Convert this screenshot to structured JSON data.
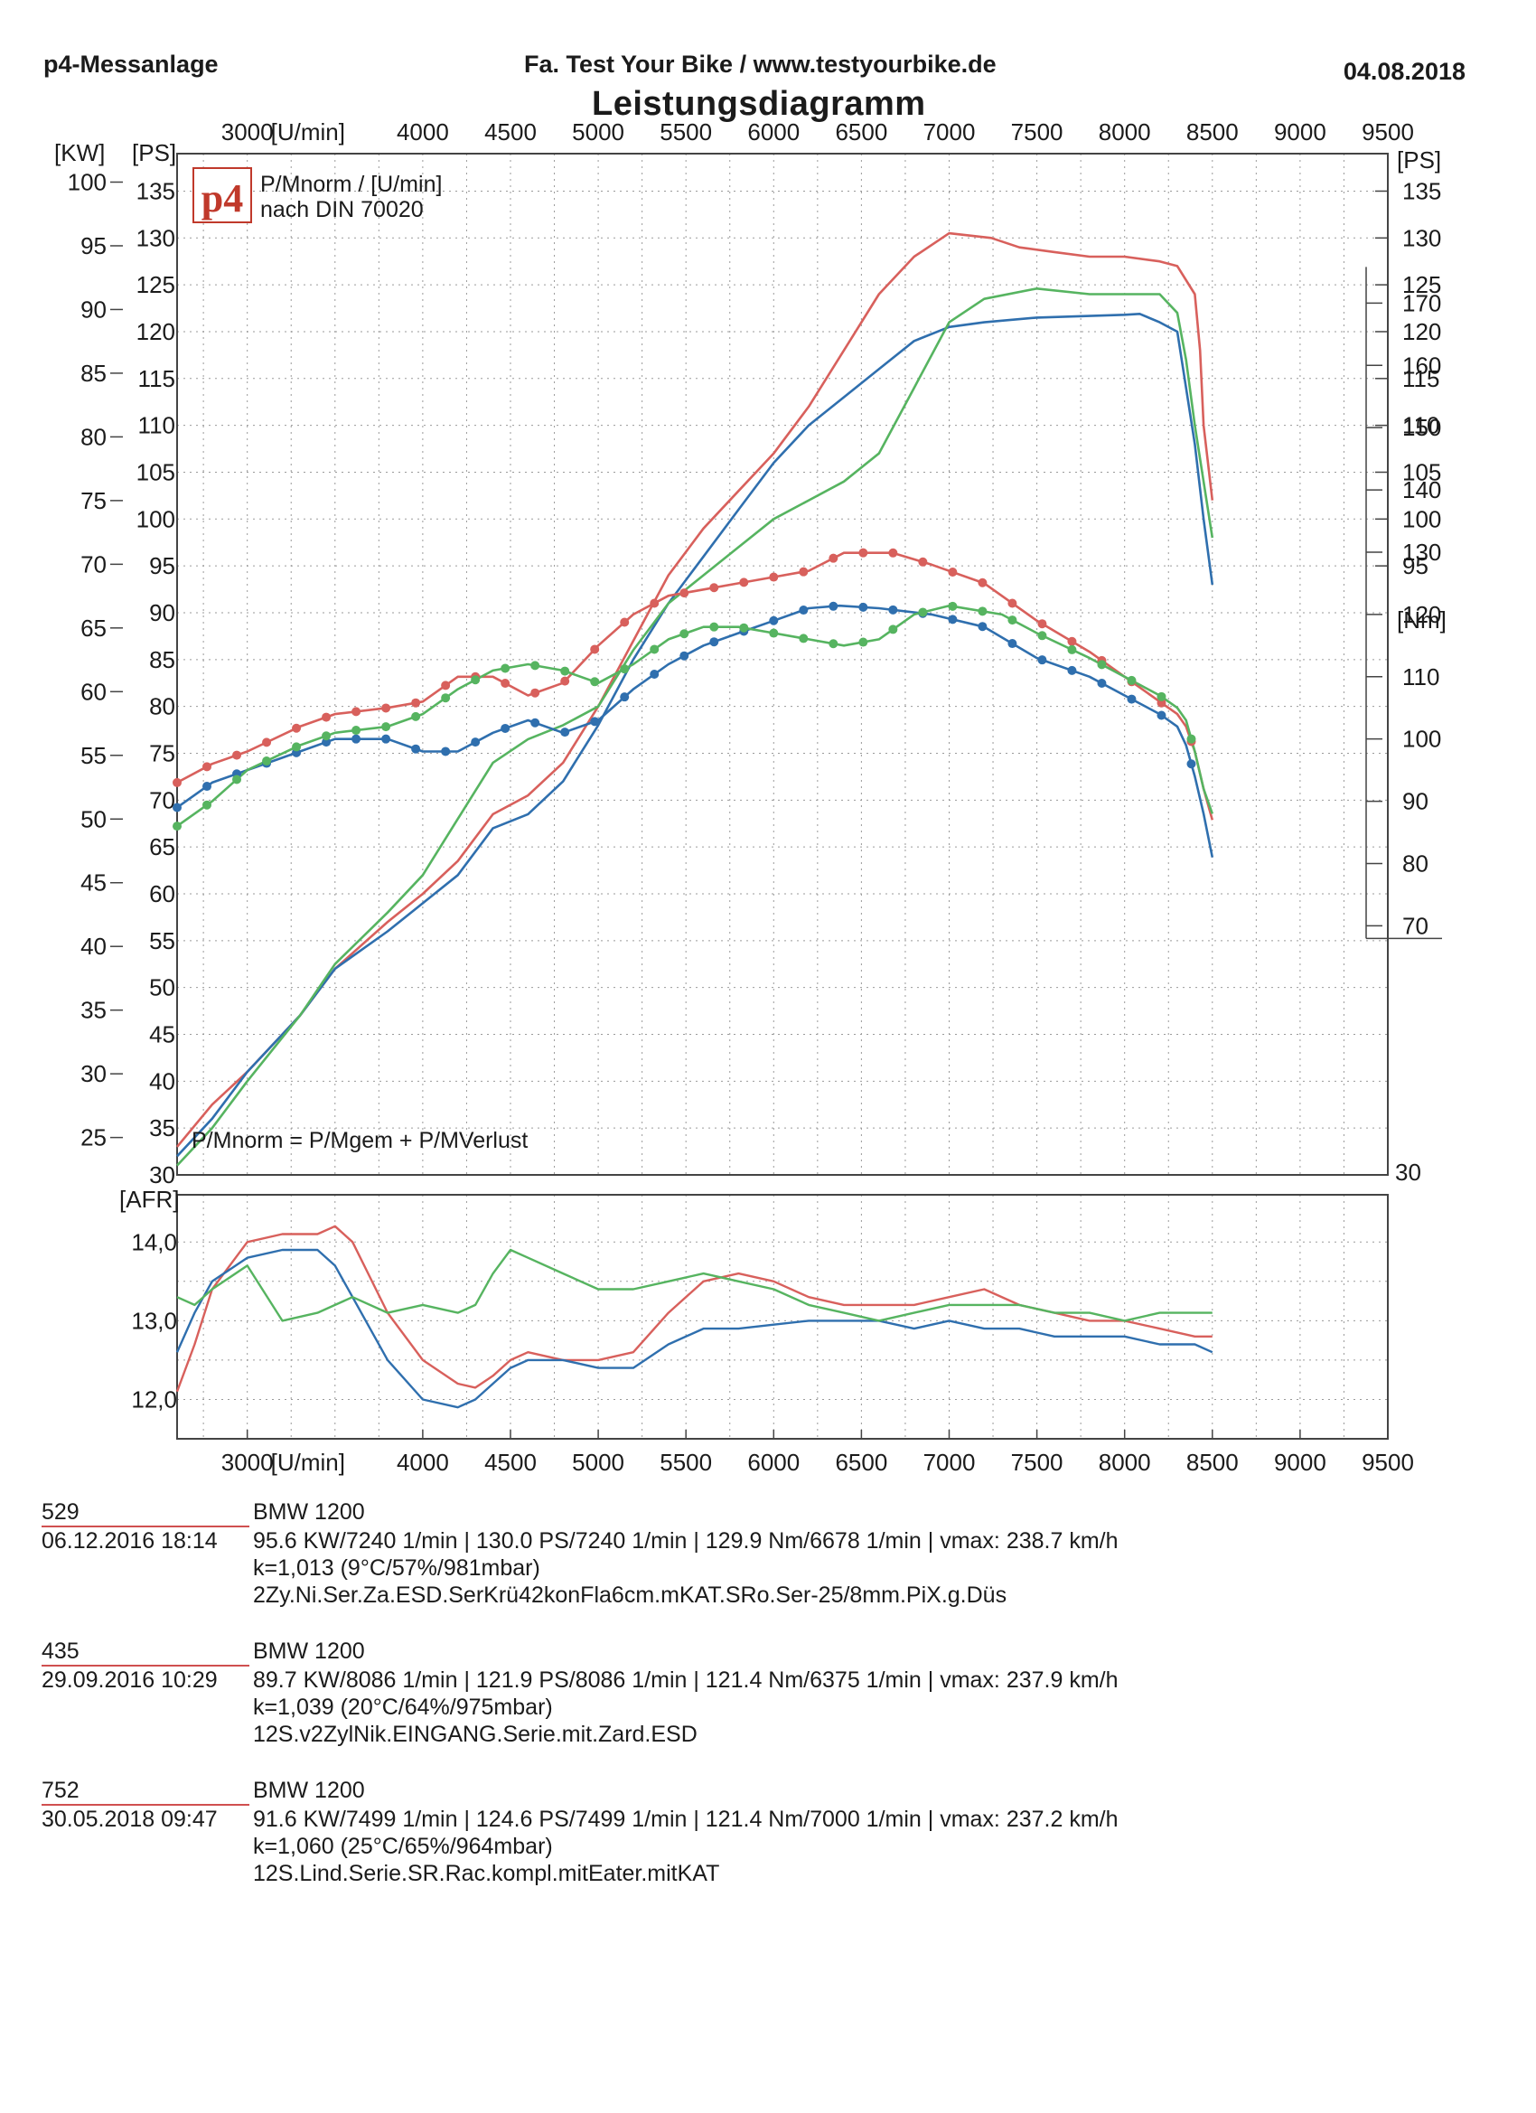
{
  "header": {
    "left": "p4-Messanlage",
    "center": "Fa. Test Your Bike / www.testyourbike.de",
    "date": "04.08.2018"
  },
  "chart_data": {
    "type": "line",
    "title": "Leistungsdiagramm",
    "xlabel": "[U/min]",
    "xlim": [
      2600,
      9500
    ],
    "x_ticks": [
      3000,
      4000,
      4500,
      5000,
      5500,
      6000,
      6500,
      7000,
      7500,
      8000,
      8500,
      9000,
      9500
    ],
    "top_x_ticks": [
      3000,
      4000,
      4500,
      5000,
      5500,
      6000,
      6500,
      7000,
      7500,
      8000,
      8500,
      9000,
      9500
    ],
    "kw_label": "[KW]",
    "kw_ticks": [
      25,
      30,
      35,
      40,
      45,
      50,
      55,
      60,
      65,
      70,
      75,
      80,
      85,
      90,
      95,
      100
    ],
    "ps_label": "[PS]",
    "ylim_ps": [
      30,
      139
    ],
    "ps_ticks": [
      30,
      35,
      40,
      45,
      50,
      55,
      60,
      65,
      70,
      75,
      80,
      85,
      90,
      95,
      100,
      105,
      110,
      115,
      120,
      125,
      130,
      135
    ],
    "ps_right_ticks": [
      95,
      100,
      105,
      110,
      115,
      120,
      125,
      130,
      135
    ],
    "nm_label": "[Nm]",
    "ylim_nm": [
      30,
      194
    ],
    "nm_ticks": [
      70,
      80,
      90,
      100,
      110,
      120,
      130,
      140,
      150,
      160,
      170
    ],
    "right_bottom_label": "30",
    "legend": {
      "line1": "P/Mnorm / [U/min]",
      "line2": "nach DIN 70020",
      "logo": "p4"
    },
    "formula": "P/Mnorm = P/Mgem + P/MVerlust",
    "series_colors": {
      "529": "#d8605c",
      "435": "#2f6fae",
      "752": "#56b460"
    },
    "power_ps": [
      {
        "name": "529",
        "x": [
          2600,
          2800,
          3000,
          3300,
          3500,
          3800,
          4000,
          4200,
          4400,
          4600,
          4800,
          5000,
          5200,
          5400,
          5600,
          5800,
          6000,
          6200,
          6400,
          6600,
          6800,
          7000,
          7240,
          7400,
          7600,
          7800,
          8000,
          8200,
          8300,
          8400,
          8430,
          8450,
          8500
        ],
        "y": [
          33,
          37.5,
          41,
          47,
          52,
          57,
          60,
          63.5,
          68.5,
          70.5,
          74,
          80,
          87,
          94,
          99,
          103,
          107,
          112,
          118,
          124,
          128,
          130.5,
          130,
          129,
          128.5,
          128,
          128,
          127.5,
          127,
          124,
          118,
          110,
          102
        ]
      },
      {
        "name": "435",
        "x": [
          2600,
          2800,
          3000,
          3300,
          3500,
          3800,
          4000,
          4200,
          4400,
          4600,
          4800,
          5000,
          5200,
          5400,
          5600,
          5800,
          6000,
          6200,
          6400,
          6600,
          6800,
          7000,
          7200,
          7500,
          8000,
          8086,
          8200,
          8300,
          8350,
          8400,
          8450,
          8500
        ],
        "y": [
          32,
          36,
          41,
          47,
          52,
          56,
          59,
          62,
          67,
          68.5,
          72,
          78,
          85,
          91,
          96,
          101,
          106,
          110,
          113,
          116,
          119,
          120.5,
          121,
          121.5,
          121.8,
          121.9,
          121,
          120,
          114,
          108,
          100,
          93
        ]
      },
      {
        "name": "752",
        "x": [
          2600,
          2800,
          3000,
          3300,
          3500,
          3800,
          4000,
          4200,
          4400,
          4600,
          4800,
          5000,
          5200,
          5400,
          5600,
          5800,
          6000,
          6200,
          6400,
          6600,
          6800,
          7000,
          7200,
          7499,
          7800,
          8000,
          8200,
          8300,
          8350,
          8400,
          8450,
          8500
        ],
        "y": [
          31,
          35,
          40,
          47,
          52.5,
          58,
          62,
          68,
          74,
          76.5,
          78,
          80,
          86,
          91,
          94,
          97,
          100,
          102,
          104,
          107,
          114,
          121,
          123.5,
          124.6,
          124,
          124,
          124,
          122,
          117,
          110,
          104,
          98
        ]
      }
    ],
    "torque_nm": [
      {
        "name": "529",
        "x": [
          2600,
          2800,
          3000,
          3300,
          3500,
          3800,
          4000,
          4200,
          4400,
          4600,
          4800,
          5000,
          5200,
          5400,
          5600,
          5800,
          6000,
          6200,
          6400,
          6678,
          6900,
          7200,
          7500,
          7800,
          8000,
          8200,
          8300,
          8350,
          8400,
          8450,
          8500
        ],
        "y": [
          93,
          96,
          98,
          102,
          104,
          105,
          106,
          110,
          110,
          107,
          109,
          115,
          120,
          123,
          124,
          125,
          126,
          127,
          129.9,
          129.9,
          128,
          125,
          119,
          114,
          110,
          106,
          104,
          102,
          98,
          92,
          87
        ]
      },
      {
        "name": "435",
        "x": [
          2600,
          2800,
          3000,
          3300,
          3500,
          3800,
          4000,
          4200,
          4400,
          4600,
          4800,
          5000,
          5200,
          5400,
          5600,
          5800,
          6000,
          6200,
          6375,
          6600,
          6900,
          7200,
          7500,
          7800,
          8000,
          8200,
          8300,
          8350,
          8400,
          8450,
          8500
        ],
        "y": [
          89,
          93,
          95,
          98,
          100,
          100,
          98,
          98,
          101,
          103,
          101,
          103,
          108,
          112,
          115,
          117,
          119,
          121,
          121.4,
          121,
          120,
          118,
          113,
          110,
          107,
          104,
          102,
          99,
          94,
          88,
          81
        ]
      },
      {
        "name": "752",
        "x": [
          2600,
          2800,
          3000,
          3300,
          3500,
          3800,
          4000,
          4200,
          4400,
          4600,
          4800,
          5000,
          5200,
          5400,
          5600,
          5800,
          6000,
          6200,
          6400,
          6600,
          6800,
          7000,
          7300,
          7500,
          7800,
          8000,
          8200,
          8300,
          8350,
          8400,
          8450,
          8500
        ],
        "y": [
          86,
          90,
          95,
          99,
          101,
          102,
          104,
          108,
          111,
          112,
          111,
          109,
          112,
          116,
          118,
          118,
          117,
          116,
          115,
          116,
          120,
          121.4,
          120,
          117,
          113,
          110,
          107,
          105,
          103,
          98,
          92,
          88
        ]
      }
    ],
    "afr": {
      "label": "[AFR]",
      "ylim": [
        11.5,
        14.6
      ],
      "y_ticks": [
        "12,0",
        "13,0",
        "14,0"
      ],
      "x_ticks": [
        3000,
        4000,
        4500,
        5000,
        5500,
        6000,
        6500,
        7000,
        7500,
        8000,
        8500,
        9000,
        9500
      ],
      "xlabel": "[U/min]",
      "series": [
        {
          "name": "529",
          "x": [
            2600,
            2700,
            2800,
            3000,
            3200,
            3400,
            3500,
            3600,
            3800,
            4000,
            4200,
            4300,
            4400,
            4500,
            4600,
            4800,
            5000,
            5200,
            5400,
            5600,
            5800,
            6000,
            6200,
            6400,
            6600,
            6800,
            7000,
            7200,
            7400,
            7600,
            7800,
            8000,
            8200,
            8400,
            8500
          ],
          "y": [
            12.1,
            12.7,
            13.4,
            14.0,
            14.1,
            14.1,
            14.2,
            14.0,
            13.1,
            12.5,
            12.2,
            12.15,
            12.3,
            12.5,
            12.6,
            12.5,
            12.5,
            12.6,
            13.1,
            13.5,
            13.6,
            13.5,
            13.3,
            13.2,
            13.2,
            13.2,
            13.3,
            13.4,
            13.2,
            13.1,
            13.0,
            13.0,
            12.9,
            12.8,
            12.8
          ]
        },
        {
          "name": "435",
          "x": [
            2600,
            2700,
            2800,
            3000,
            3200,
            3400,
            3500,
            3600,
            3800,
            4000,
            4200,
            4300,
            4400,
            4500,
            4600,
            4800,
            5000,
            5200,
            5400,
            5600,
            5800,
            6000,
            6200,
            6400,
            6600,
            6800,
            7000,
            7200,
            7400,
            7600,
            7800,
            8000,
            8200,
            8400,
            8500
          ],
          "y": [
            12.6,
            13.1,
            13.5,
            13.8,
            13.9,
            13.9,
            13.7,
            13.3,
            12.5,
            12.0,
            11.9,
            12.0,
            12.2,
            12.4,
            12.5,
            12.5,
            12.4,
            12.4,
            12.7,
            12.9,
            12.9,
            12.95,
            13.0,
            13.0,
            13.0,
            12.9,
            13.0,
            12.9,
            12.9,
            12.8,
            12.8,
            12.8,
            12.7,
            12.7,
            12.6
          ]
        },
        {
          "name": "752",
          "x": [
            2600,
            2700,
            2800,
            3000,
            3200,
            3400,
            3500,
            3600,
            3800,
            4000,
            4200,
            4300,
            4400,
            4500,
            4600,
            4800,
            5000,
            5200,
            5400,
            5600,
            5800,
            6000,
            6200,
            6400,
            6600,
            6800,
            7000,
            7200,
            7400,
            7600,
            7800,
            8000,
            8200,
            8400,
            8500
          ],
          "y": [
            13.3,
            13.2,
            13.4,
            13.7,
            13.0,
            13.1,
            13.2,
            13.3,
            13.1,
            13.2,
            13.1,
            13.2,
            13.6,
            13.9,
            13.8,
            13.6,
            13.4,
            13.4,
            13.5,
            13.6,
            13.5,
            13.4,
            13.2,
            13.1,
            13.0,
            13.1,
            13.2,
            13.2,
            13.2,
            13.1,
            13.1,
            13.0,
            13.1,
            13.1,
            13.1
          ]
        }
      ]
    }
  },
  "runs": [
    {
      "id": "529",
      "date": "06.12.2016   18:14",
      "bike": "BMW 1200",
      "perf": "95.6 KW/7240 1/min  |  130.0 PS/7240 1/min  |  129.9 Nm/6678 1/min | vmax: 238.7 km/h",
      "corr": "k=1,013 (9°C/57%/981mbar)",
      "config": "2Zy.Ni.Ser.Za.ESD.SerKrü42konFla6cm.mKAT.SRo.Ser-25/8mm.PiX.g.Düs"
    },
    {
      "id": "435",
      "date": "29.09.2016   10:29",
      "bike": "BMW 1200",
      "perf": "89.7 KW/8086 1/min  |  121.9 PS/8086 1/min  |  121.4 Nm/6375 1/min | vmax: 237.9 km/h",
      "corr": "k=1,039 (20°C/64%/975mbar)",
      "config": "12S.v2ZylNik.EINGANG.Serie.mit.Zard.ESD"
    },
    {
      "id": "752",
      "date": "30.05.2018   09:47",
      "bike": "BMW 1200",
      "perf": "91.6 KW/7499 1/min  |  124.6 PS/7499 1/min  |  121.4 Nm/7000 1/min | vmax: 237.2 km/h",
      "corr": "k=1,060 (25°C/65%/964mbar)",
      "config": "12S.Lind.Serie.SR.Rac.kompl.mitEater.mitKAT"
    }
  ]
}
